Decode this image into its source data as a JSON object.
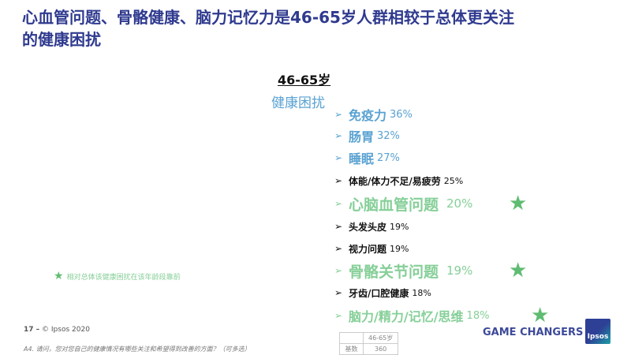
{
  "title": {
    "line1": "心血管问题、骨骼健康、脑力记忆力是46-65岁人群相较于总体更关注",
    "line2": "的健康困扰"
  },
  "group_label": "46-65岁",
  "section_label": "健康困扰",
  "items": [
    {
      "label": "免疫力",
      "pct": "36%",
      "style": "blue"
    },
    {
      "label": "肠胃",
      "pct": "32%",
      "style": "blue"
    },
    {
      "label": "睡眠",
      "pct": "27%",
      "style": "blue"
    },
    {
      "label": "体能/体力不足/易疲劳",
      "pct": "25%",
      "style": "black"
    },
    {
      "label": "心脑血管问题",
      "pct": "20%",
      "style": "green",
      "starred": true
    },
    {
      "label": "头发头皮",
      "pct": "19%",
      "style": "black"
    },
    {
      "label": "视力问题",
      "pct": "19%",
      "style": "black"
    },
    {
      "label": "骨骼关节问题",
      "pct": "19%",
      "style": "green",
      "starred": true
    },
    {
      "label": "牙齿/口腔健康",
      "pct": "18%",
      "style": "black"
    },
    {
      "label": "脑力/精力/记忆/思维",
      "pct": "18%",
      "style": "green",
      "starred": true
    }
  ],
  "legend": "相对总体该健康困扰在该年龄段靠前",
  "footer": {
    "page": "17 –",
    "copyright": "© Ipsos 2020",
    "question": "A4. 请问，您对您自己的健康情况有哪些关注和希望得到改善的方面？（可多选）"
  },
  "base_table": {
    "header": "46-65岁",
    "row_label": "基数",
    "value": "360"
  },
  "brand": {
    "tagline": "GAME CHANGERS",
    "logo": "Ipsos"
  },
  "colors": {
    "title": "#2f3a8f",
    "blue": "#5aa2d2",
    "green": "#86cf98",
    "star": "#5fbc72"
  }
}
